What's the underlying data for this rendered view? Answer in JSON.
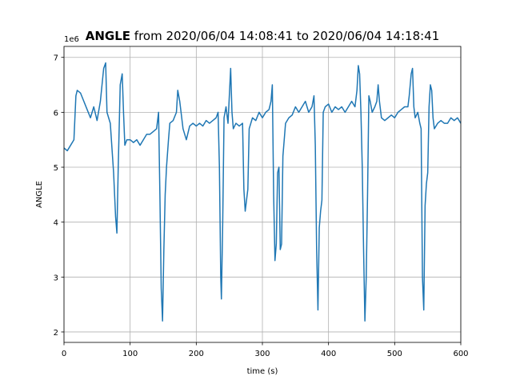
{
  "chart_data": {
    "type": "line",
    "title": "ANGLE",
    "title_suffix": "from 2020/06/04 14:08:41 to 2020/06/04 14:18:41",
    "x_label": "time (s)",
    "y_label": "ANGLE",
    "y_offset_label": "1e6",
    "color": "#1f77b4",
    "grid": true,
    "xlim": [
      0,
      600
    ],
    "xticks": [
      0,
      100,
      200,
      300,
      400,
      500,
      600
    ],
    "ylim": [
      1.81,
      7.2
    ],
    "yticks": [
      2,
      3,
      4,
      5,
      6,
      7
    ],
    "x": [
      0,
      5,
      10,
      15,
      18,
      20,
      25,
      30,
      35,
      40,
      45,
      50,
      55,
      60,
      63,
      65,
      70,
      75,
      78,
      80,
      82,
      85,
      88,
      90,
      92,
      95,
      100,
      105,
      110,
      115,
      120,
      125,
      130,
      135,
      140,
      143,
      145,
      147,
      149,
      151,
      153,
      155,
      158,
      160,
      165,
      170,
      172,
      175,
      180,
      185,
      190,
      195,
      200,
      205,
      210,
      215,
      220,
      225,
      230,
      233,
      235,
      237,
      238,
      240,
      242,
      245,
      248,
      250,
      252,
      254,
      256,
      260,
      265,
      270,
      272,
      274,
      276,
      278,
      280,
      285,
      290,
      295,
      300,
      305,
      310,
      313,
      315,
      317,
      319,
      321,
      323,
      325,
      327,
      329,
      331,
      335,
      340,
      345,
      350,
      355,
      360,
      365,
      370,
      375,
      378,
      380,
      382,
      384,
      386,
      388,
      390,
      392,
      395,
      400,
      405,
      410,
      415,
      420,
      425,
      430,
      435,
      440,
      443,
      445,
      447,
      449,
      451,
      453,
      455,
      457,
      459,
      461,
      463,
      466,
      470,
      473,
      475,
      477,
      480,
      485,
      490,
      495,
      500,
      505,
      510,
      515,
      520,
      522,
      525,
      527,
      529,
      531,
      535,
      538,
      540,
      542,
      544,
      546,
      548,
      550,
      552,
      554,
      556,
      558,
      560,
      565,
      570,
      575,
      580,
      585,
      590,
      595,
      600
    ],
    "values": [
      5.35,
      5.3,
      5.4,
      5.5,
      6.3,
      6.4,
      6.35,
      6.2,
      6.05,
      5.9,
      6.1,
      5.85,
      6.2,
      6.8,
      6.9,
      6.0,
      5.8,
      4.9,
      4.1,
      3.8,
      5.0,
      6.5,
      6.7,
      6.0,
      5.4,
      5.5,
      5.5,
      5.45,
      5.5,
      5.4,
      5.5,
      5.6,
      5.6,
      5.65,
      5.7,
      6.0,
      4.5,
      2.8,
      2.2,
      3.5,
      4.5,
      5.0,
      5.5,
      5.8,
      5.85,
      6.0,
      6.4,
      6.2,
      5.7,
      5.5,
      5.75,
      5.8,
      5.75,
      5.8,
      5.75,
      5.85,
      5.8,
      5.85,
      5.9,
      6.0,
      5.0,
      3.0,
      2.6,
      4.0,
      5.9,
      6.1,
      5.8,
      6.3,
      6.8,
      6.0,
      5.7,
      5.8,
      5.75,
      5.8,
      4.6,
      4.2,
      4.4,
      4.6,
      5.7,
      5.9,
      5.85,
      6.0,
      5.9,
      6.0,
      6.05,
      6.2,
      6.5,
      4.5,
      3.3,
      3.6,
      4.9,
      5.0,
      3.5,
      3.6,
      5.2,
      5.8,
      5.9,
      5.95,
      6.1,
      6.0,
      6.1,
      6.2,
      6.0,
      6.1,
      6.3,
      5.4,
      3.5,
      2.4,
      3.9,
      4.2,
      4.4,
      6.0,
      6.1,
      6.15,
      6.0,
      6.1,
      6.05,
      6.1,
      6.0,
      6.1,
      6.2,
      6.1,
      6.4,
      6.85,
      6.7,
      6.0,
      5.0,
      3.5,
      2.2,
      3.0,
      4.5,
      6.3,
      6.2,
      6.0,
      6.1,
      6.2,
      6.5,
      6.2,
      5.9,
      5.85,
      5.9,
      5.95,
      5.9,
      6.0,
      6.05,
      6.1,
      6.1,
      6.3,
      6.7,
      6.8,
      6.1,
      5.9,
      6.0,
      5.8,
      5.7,
      3.0,
      2.4,
      4.3,
      4.7,
      4.9,
      6.1,
      6.5,
      6.4,
      5.9,
      5.7,
      5.8,
      5.85,
      5.8,
      5.8,
      5.9,
      5.85,
      5.9,
      5.8
    ]
  }
}
